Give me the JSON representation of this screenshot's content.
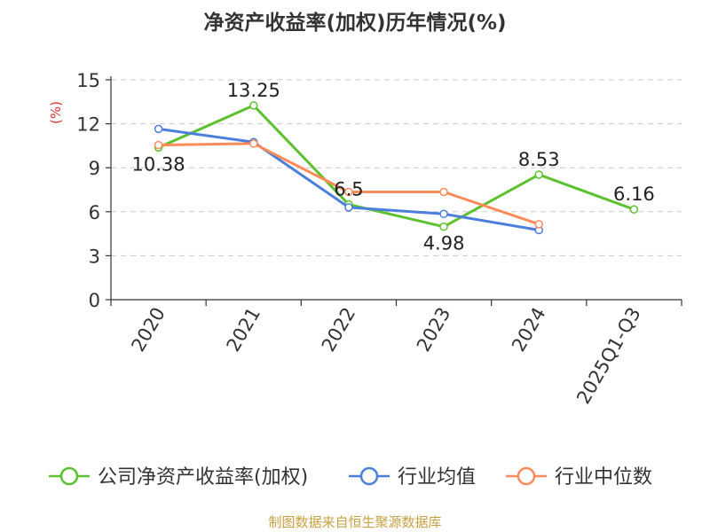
{
  "chart_data": {
    "type": "line",
    "title": "净资产收益率(加权)历年情况(%)",
    "ylabel": "(%)",
    "categories": [
      "2020",
      "2021",
      "2022",
      "2023",
      "2024",
      "2025Q1-Q3"
    ],
    "yticks": [
      "0",
      "3",
      "6",
      "9",
      "12",
      "15"
    ],
    "ylim": [
      0,
      15
    ],
    "grid": true,
    "legend": "bottom",
    "series": [
      {
        "name": "公司净资产收益率(加权)",
        "color": "#5cc12e",
        "values": [
          10.38,
          13.25,
          6.5,
          4.98,
          8.53,
          6.16
        ],
        "labels": [
          "10.38",
          "13.25",
          "6.5",
          "4.98",
          "8.53",
          "6.16"
        ]
      },
      {
        "name": "行业均值",
        "color": "#4c7fdc",
        "values": [
          11.65,
          10.75,
          6.3,
          5.85,
          4.75,
          null
        ]
      },
      {
        "name": "行业中位数",
        "color": "#fb8c5a",
        "values": [
          10.55,
          10.65,
          7.35,
          7.35,
          5.15,
          null
        ]
      }
    ]
  },
  "source": "制图数据来自恒生聚源数据库"
}
